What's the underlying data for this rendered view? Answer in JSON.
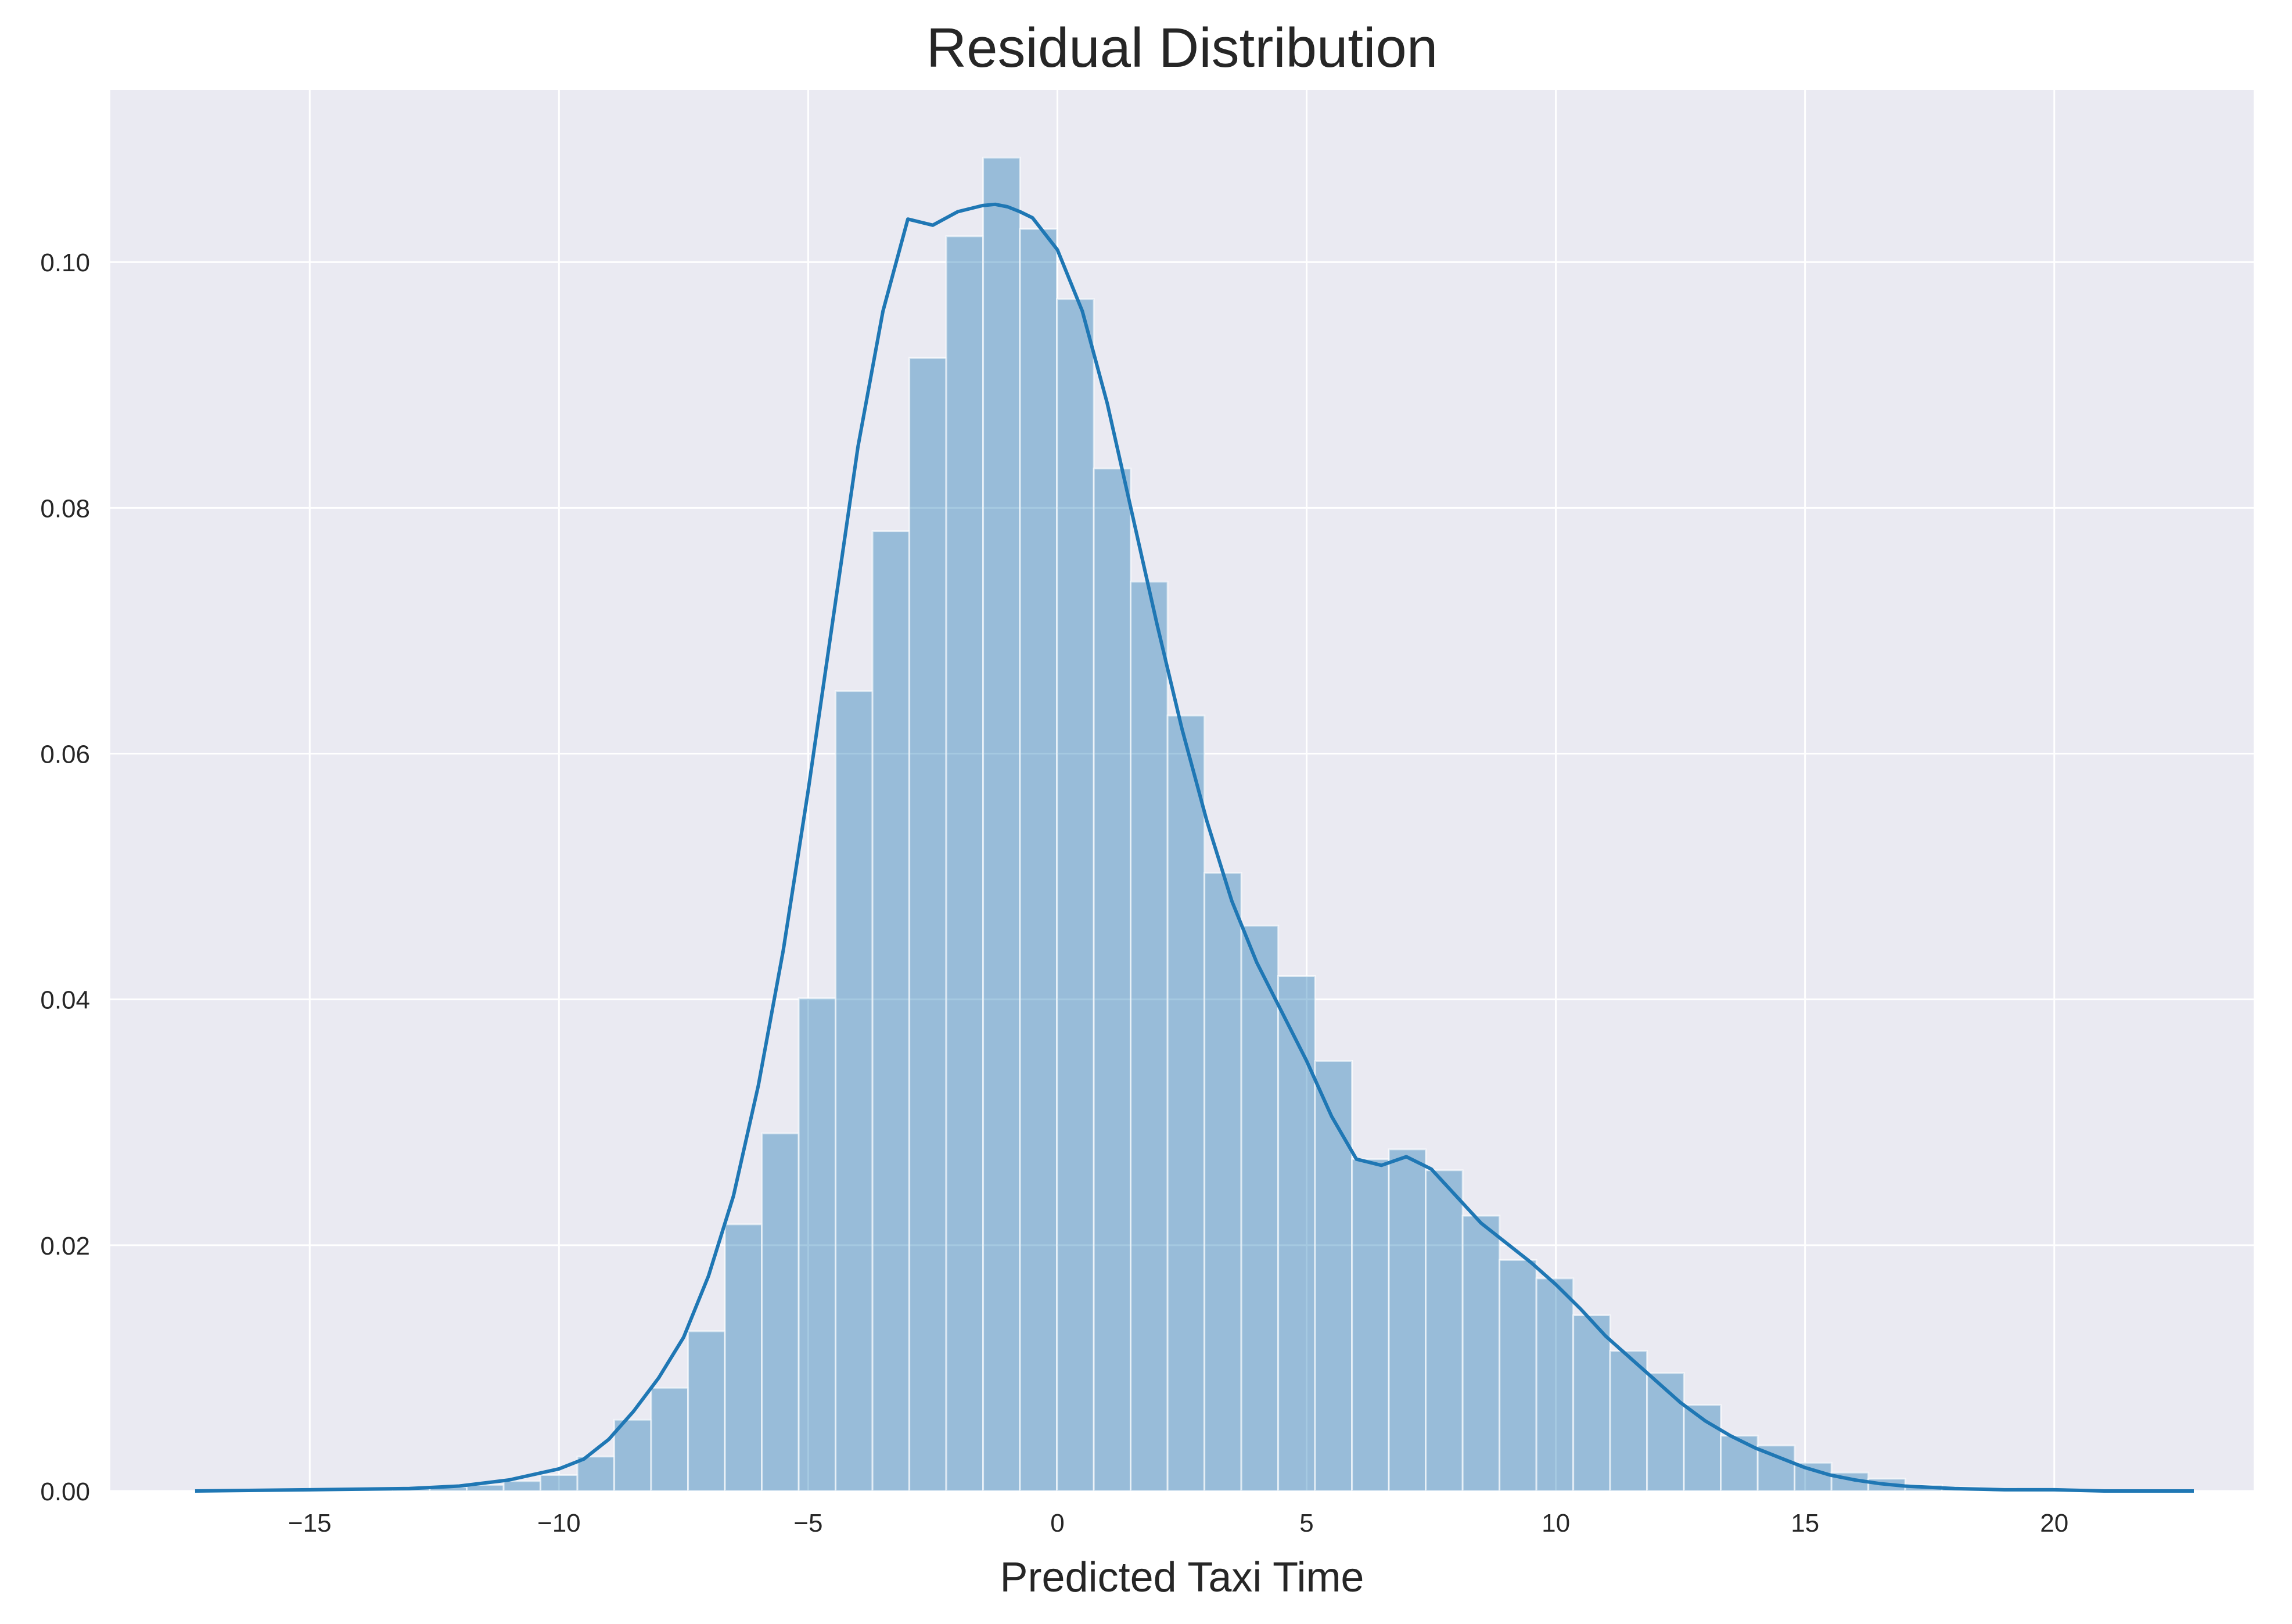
{
  "chart_data": {
    "type": "bar",
    "title": "Residual Distribution",
    "xlabel": "Predicted Taxi Time",
    "ylabel": "",
    "xlim": [
      -19.0,
      24.0
    ],
    "ylim": [
      0,
      0.114
    ],
    "grid": true,
    "colors": {
      "background": "#eaeaf2",
      "grid": "#ffffff",
      "bar_fill": "#1f77b4",
      "bar_opacity": 0.4,
      "kde_line": "#1f77b4"
    },
    "x_ticks": [
      -15,
      -10,
      -5,
      0,
      5,
      10,
      15,
      20
    ],
    "x_tick_labels": [
      "−15",
      "−10",
      "−5",
      "0",
      "5",
      "10",
      "15",
      "20"
    ],
    "y_ticks": [
      0.0,
      0.02,
      0.04,
      0.06,
      0.08,
      0.1
    ],
    "y_tick_labels": [
      "0.00",
      "0.02",
      "0.04",
      "0.06",
      "0.08",
      "0.10"
    ],
    "bin_width": 0.74,
    "bin_left_edges": [
      -14.81,
      -14.07,
      -13.33,
      -12.59,
      -11.85,
      -11.11,
      -10.37,
      -9.63,
      -8.89,
      -8.15,
      -7.41,
      -6.67,
      -5.93,
      -5.19,
      -4.45,
      -3.71,
      -2.97,
      -2.23,
      -1.49,
      -0.75,
      -0.01,
      0.73,
      1.47,
      2.21,
      2.95,
      3.69,
      4.43,
      5.17,
      5.91,
      6.65,
      7.39,
      8.13,
      8.87,
      9.61,
      10.35,
      11.09,
      11.83,
      12.57,
      13.31,
      14.05,
      14.79,
      15.53,
      16.27,
      17.01,
      17.75,
      18.49
    ],
    "values": [
      0.0001,
      0.0001,
      0.0002,
      0.0003,
      0.0005,
      0.0008,
      0.0013,
      0.0028,
      0.0058,
      0.0084,
      0.013,
      0.0217,
      0.0291,
      0.0401,
      0.0651,
      0.0781,
      0.0922,
      0.1021,
      0.1085,
      0.1027,
      0.097,
      0.0832,
      0.074,
      0.0631,
      0.0503,
      0.046,
      0.0419,
      0.035,
      0.027,
      0.0278,
      0.0261,
      0.0224,
      0.0188,
      0.0173,
      0.0143,
      0.0114,
      0.0096,
      0.007,
      0.0045,
      0.0037,
      0.0023,
      0.0015,
      0.001,
      0.0005,
      0.0003,
      0.0002
    ],
    "kde": {
      "x": [
        -17.3,
        -15.0,
        -13.0,
        -12.0,
        -11.0,
        -10.0,
        -9.5,
        -9.0,
        -8.5,
        -8.0,
        -7.5,
        -7.0,
        -6.5,
        -6.0,
        -5.5,
        -5.0,
        -4.5,
        -4.0,
        -3.5,
        -3.0,
        -2.5,
        -2.0,
        -1.5,
        -1.25,
        -1.0,
        -0.75,
        -0.5,
        0.0,
        0.5,
        1.0,
        1.5,
        2.0,
        2.5,
        3.0,
        3.5,
        4.0,
        4.5,
        5.0,
        5.5,
        6.0,
        6.5,
        7.0,
        7.5,
        8.0,
        8.5,
        9.0,
        9.5,
        10.0,
        10.5,
        11.0,
        11.5,
        12.0,
        12.5,
        13.0,
        13.5,
        14.0,
        14.5,
        15.0,
        15.5,
        16.0,
        16.5,
        17.0,
        17.5,
        18.0,
        19.0,
        20.0,
        21.0,
        22.8
      ],
      "y": [
        0.0,
        0.0001,
        0.0002,
        0.0004,
        0.0009,
        0.0018,
        0.0026,
        0.0042,
        0.0065,
        0.0092,
        0.0125,
        0.0175,
        0.024,
        0.033,
        0.044,
        0.057,
        0.071,
        0.085,
        0.096,
        0.1035,
        0.103,
        0.1041,
        0.1046,
        0.1047,
        0.1045,
        0.1041,
        0.1036,
        0.101,
        0.096,
        0.0885,
        0.0795,
        0.0705,
        0.062,
        0.0545,
        0.048,
        0.043,
        0.039,
        0.035,
        0.0305,
        0.027,
        0.0265,
        0.0272,
        0.0262,
        0.024,
        0.0218,
        0.0202,
        0.0186,
        0.0168,
        0.0148,
        0.0126,
        0.0108,
        0.009,
        0.0072,
        0.0057,
        0.0045,
        0.0035,
        0.0027,
        0.0019,
        0.0013,
        0.0009,
        0.0006,
        0.0004,
        0.0003,
        0.0002,
        0.0001,
        0.0001,
        0.0,
        0.0
      ]
    }
  }
}
